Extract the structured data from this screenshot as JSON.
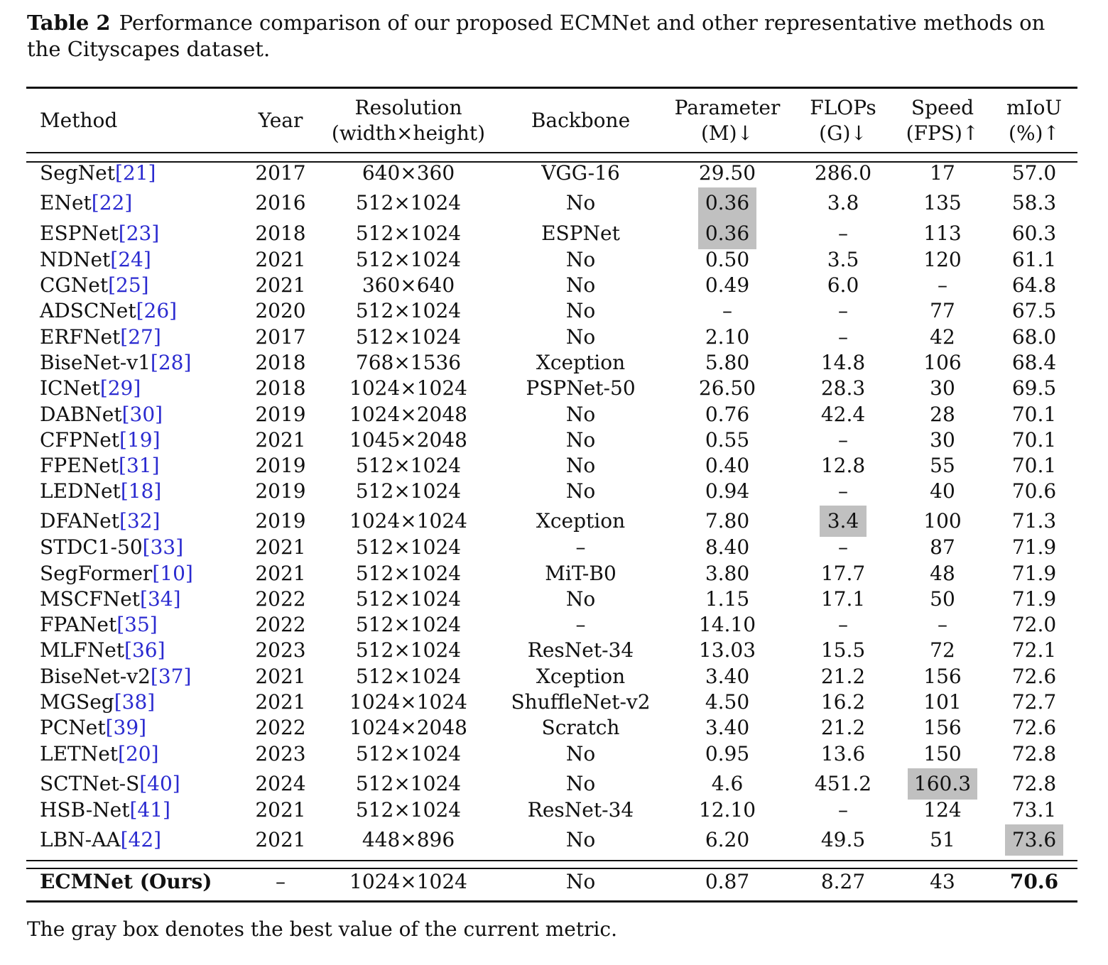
{
  "caption": {
    "label": "Table 2",
    "text": "Performance comparison of our proposed ECMNet and other representative methods on the Cityscapes dataset."
  },
  "headers": {
    "method": "Method",
    "year": "Year",
    "resolution_line1": "Resolution",
    "resolution_line2": "(width×height)",
    "backbone": "Backbone",
    "parameter_line1": "Parameter",
    "parameter_line2": "(M)↓",
    "flops_line1": "FLOPs",
    "flops_line2": "(G)↓",
    "speed_line1": "Speed",
    "speed_line2": "(FPS)↑",
    "miou_line1": "mIoU",
    "miou_line2": "(%)↑"
  },
  "rows": [
    {
      "name": "SegNet",
      "ref": "[21]",
      "year": "2017",
      "resolution": "640×360",
      "backbone": "VGG-16",
      "params": "29.50",
      "flops": "286.0",
      "speed": "17",
      "miou": "57.0",
      "best": []
    },
    {
      "name": "ENet",
      "ref": "[22]",
      "year": "2016",
      "resolution": "512×1024",
      "backbone": "No",
      "params": "0.36",
      "flops": "3.8",
      "speed": "135",
      "miou": "58.3",
      "best": [
        "params"
      ]
    },
    {
      "name": "ESPNet",
      "ref": "[23]",
      "year": "2018",
      "resolution": "512×1024",
      "backbone": "ESPNet",
      "params": "0.36",
      "flops": "–",
      "speed": "113",
      "miou": "60.3",
      "best": [
        "params"
      ]
    },
    {
      "name": "NDNet",
      "ref": "[24]",
      "year": "2021",
      "resolution": "512×1024",
      "backbone": "No",
      "params": "0.50",
      "flops": "3.5",
      "speed": "120",
      "miou": "61.1",
      "best": []
    },
    {
      "name": "CGNet",
      "ref": "[25]",
      "year": "2021",
      "resolution": "360×640",
      "backbone": "No",
      "params": "0.49",
      "flops": "6.0",
      "speed": "–",
      "miou": "64.8",
      "best": []
    },
    {
      "name": "ADSCNet",
      "ref": "[26]",
      "year": "2020",
      "resolution": "512×1024",
      "backbone": "No",
      "params": "–",
      "flops": "–",
      "speed": "77",
      "miou": "67.5",
      "best": []
    },
    {
      "name": "ERFNet",
      "ref": "[27]",
      "year": "2017",
      "resolution": "512×1024",
      "backbone": "No",
      "params": "2.10",
      "flops": "–",
      "speed": "42",
      "miou": "68.0",
      "best": []
    },
    {
      "name": "BiseNet-v1",
      "ref": "[28]",
      "year": "2018",
      "resolution": "768×1536",
      "backbone": "Xception",
      "params": "5.80",
      "flops": "14.8",
      "speed": "106",
      "miou": "68.4",
      "best": []
    },
    {
      "name": "ICNet",
      "ref": "[29]",
      "year": "2018",
      "resolution": "1024×1024",
      "backbone": "PSPNet-50",
      "params": "26.50",
      "flops": "28.3",
      "speed": "30",
      "miou": "69.5",
      "best": []
    },
    {
      "name": "DABNet",
      "ref": "[30]",
      "year": "2019",
      "resolution": "1024×2048",
      "backbone": "No",
      "params": "0.76",
      "flops": "42.4",
      "speed": "28",
      "miou": "70.1",
      "best": []
    },
    {
      "name": "CFPNet",
      "ref": "[19]",
      "year": "2021",
      "resolution": "1045×2048",
      "backbone": "No",
      "params": "0.55",
      "flops": "–",
      "speed": "30",
      "miou": "70.1",
      "best": []
    },
    {
      "name": "FPENet",
      "ref": "[31]",
      "year": "2019",
      "resolution": "512×1024",
      "backbone": "No",
      "params": "0.40",
      "flops": "12.8",
      "speed": "55",
      "miou": "70.1",
      "best": []
    },
    {
      "name": "LEDNet",
      "ref": "[18]",
      "year": "2019",
      "resolution": "512×1024",
      "backbone": "No",
      "params": "0.94",
      "flops": "–",
      "speed": "40",
      "miou": "70.6",
      "best": []
    },
    {
      "name": "DFANet",
      "ref": "[32]",
      "year": "2019",
      "resolution": "1024×1024",
      "backbone": "Xception",
      "params": "7.80",
      "flops": "3.4",
      "speed": "100",
      "miou": "71.3",
      "best": [
        "flops"
      ]
    },
    {
      "name": "STDC1-50",
      "ref": "[33]",
      "year": "2021",
      "resolution": "512×1024",
      "backbone": "–",
      "params": "8.40",
      "flops": "–",
      "speed": "87",
      "miou": "71.9",
      "best": []
    },
    {
      "name": "SegFormer",
      "ref": "[10]",
      "year": "2021",
      "resolution": "512×1024",
      "backbone": "MiT-B0",
      "params": "3.80",
      "flops": "17.7",
      "speed": "48",
      "miou": "71.9",
      "best": []
    },
    {
      "name": "MSCFNet",
      "ref": "[34]",
      "year": "2022",
      "resolution": "512×1024",
      "backbone": "No",
      "params": "1.15",
      "flops": "17.1",
      "speed": "50",
      "miou": "71.9",
      "best": []
    },
    {
      "name": "FPANet",
      "ref": "[35]",
      "year": "2022",
      "resolution": "512×1024",
      "backbone": "–",
      "params": "14.10",
      "flops": "–",
      "speed": "–",
      "miou": "72.0",
      "best": []
    },
    {
      "name": "MLFNet",
      "ref": "[36]",
      "year": "2023",
      "resolution": "512×1024",
      "backbone": "ResNet-34",
      "params": "13.03",
      "flops": "15.5",
      "speed": "72",
      "miou": "72.1",
      "best": []
    },
    {
      "name": "BiseNet-v2",
      "ref": "[37]",
      "year": "2021",
      "resolution": "512×1024",
      "backbone": "Xception",
      "params": "3.40",
      "flops": "21.2",
      "speed": "156",
      "miou": "72.6",
      "best": []
    },
    {
      "name": "MGSeg",
      "ref": "[38]",
      "year": "2021",
      "resolution": "1024×1024",
      "backbone": "ShuffleNet-v2",
      "params": "4.50",
      "flops": "16.2",
      "speed": "101",
      "miou": "72.7",
      "best": []
    },
    {
      "name": "PCNet",
      "ref": "[39]",
      "year": "2022",
      "resolution": "1024×2048",
      "backbone": "Scratch",
      "params": "3.40",
      "flops": "21.2",
      "speed": "156",
      "miou": "72.6",
      "best": []
    },
    {
      "name": "LETNet",
      "ref": "[20]",
      "year": "2023",
      "resolution": "512×1024",
      "backbone": "No",
      "params": "0.95",
      "flops": "13.6",
      "speed": "150",
      "miou": "72.8",
      "best": []
    },
    {
      "name": "SCTNet-S",
      "ref": "[40]",
      "year": "2024",
      "resolution": "512×1024",
      "backbone": "No",
      "params": "4.6",
      "flops": "451.2",
      "speed": "160.3",
      "miou": "72.8",
      "best": [
        "speed"
      ]
    },
    {
      "name": "HSB-Net",
      "ref": "[41]",
      "year": "2021",
      "resolution": "512×1024",
      "backbone": "ResNet-34",
      "params": "12.10",
      "flops": "–",
      "speed": "124",
      "miou": "73.1",
      "best": []
    },
    {
      "name": "LBN-AA",
      "ref": "[42]",
      "year": "2021",
      "resolution": "448×896",
      "backbone": "No",
      "params": "6.20",
      "flops": "49.5",
      "speed": "51",
      "miou": "73.6",
      "best": [
        "miou"
      ]
    }
  ],
  "ours": {
    "name": "ECMNet (Ours)",
    "year": "–",
    "resolution": "1024×1024",
    "backbone": "No",
    "params": "0.87",
    "flops": "8.27",
    "speed": "43",
    "miou": "70.6"
  },
  "footnote": "The gray box denotes the best value of the current metric.",
  "colors": {
    "best_highlight": "#c0c0c0",
    "citation": "#2a2ad0",
    "text": "#111111"
  }
}
